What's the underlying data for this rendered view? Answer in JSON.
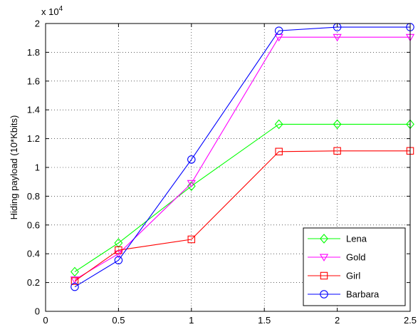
{
  "chart_data": {
    "type": "line",
    "ylabel": "Hiding payload (10*Kbits)",
    "xlabel": "",
    "title": "",
    "y_exponent_label": "x 10",
    "y_exponent_power": "4",
    "xlim": [
      0,
      2.5
    ],
    "ylim": [
      0,
      20000
    ],
    "x_ticks": [
      0,
      0.5,
      1,
      1.5,
      2,
      2.5
    ],
    "x_tick_labels": [
      "0",
      "0.5",
      "1",
      "1.5",
      "2",
      "2.5"
    ],
    "y_ticks": [
      0,
      2000,
      4000,
      6000,
      8000,
      10000,
      12000,
      14000,
      16000,
      18000,
      20000
    ],
    "y_tick_labels": [
      "0",
      "0.2",
      "0.4",
      "0.6",
      "0.8",
      "1",
      "1.2",
      "1.4",
      "1.6",
      "1.8",
      "2"
    ],
    "grid": true,
    "legend_position": "bottom-right",
    "series": [
      {
        "name": "Lena",
        "color": "#00ff00",
        "marker": "diamond",
        "x": [
          0.2,
          0.5,
          1.0,
          1.6,
          2.0,
          2.5
        ],
        "y": [
          2750,
          4750,
          8700,
          13000,
          13000,
          13000
        ]
      },
      {
        "name": "Gold",
        "color": "#ff00ff",
        "marker": "triangle-down",
        "x": [
          0.2,
          0.5,
          1.0,
          1.6,
          2.0,
          2.5
        ],
        "y": [
          2200,
          4000,
          8900,
          19050,
          19050,
          19050
        ]
      },
      {
        "name": "Girl",
        "color": "#ff0000",
        "marker": "square",
        "x": [
          0.2,
          0.5,
          1.0,
          1.6,
          2.0,
          2.5
        ],
        "y": [
          2100,
          4250,
          5000,
          11100,
          11150,
          11150
        ]
      },
      {
        "name": "Barbara",
        "color": "#0000ff",
        "marker": "circle",
        "x": [
          0.2,
          0.5,
          1.0,
          1.6,
          2.0,
          2.5
        ],
        "y": [
          1700,
          3550,
          10550,
          19500,
          19750,
          19750
        ]
      }
    ]
  }
}
